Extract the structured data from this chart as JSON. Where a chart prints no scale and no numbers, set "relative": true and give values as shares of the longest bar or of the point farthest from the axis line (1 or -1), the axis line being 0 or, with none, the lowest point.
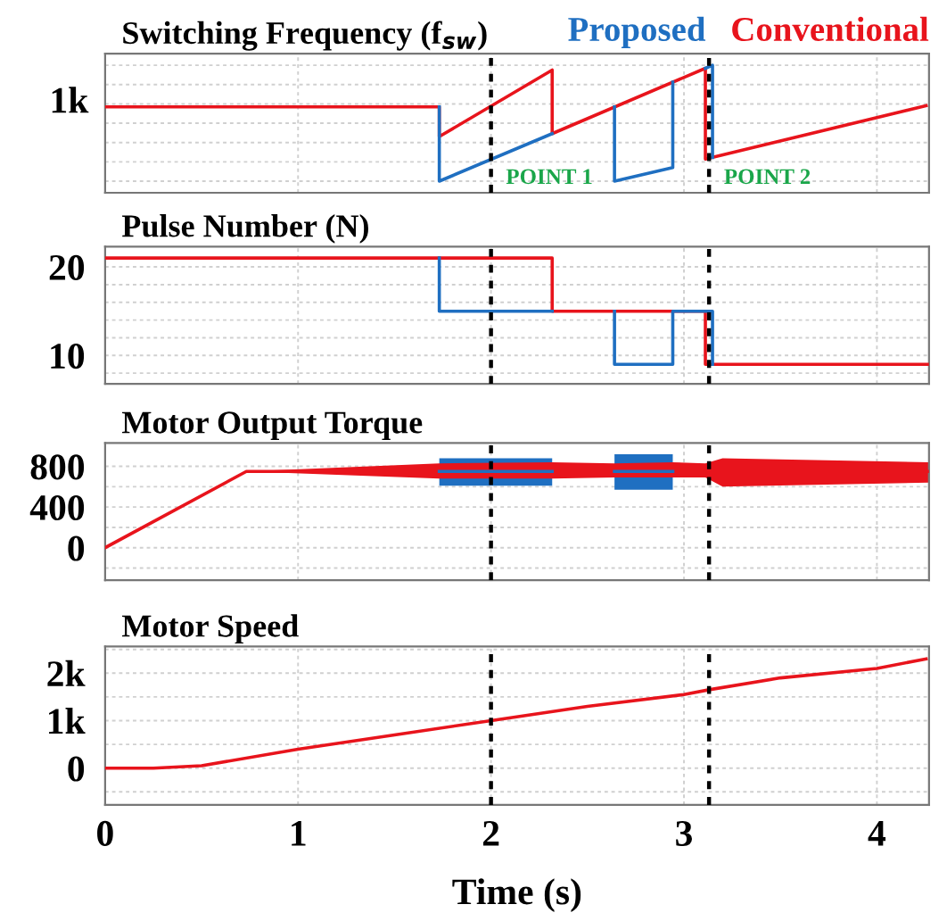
{
  "chart_data": [
    {
      "type": "line",
      "title": "Switching Frequency (f$_{sw}$)",
      "relative": true,
      "xlim": [
        0,
        4.27
      ],
      "tick_labels": false,
      "grid": true,
      "annotations": [
        "1k"
      ],
      "ref_lines": [
        {
          "axis": "x",
          "value": 2.0,
          "label": "POINT 1",
          "line_style": "dotted",
          "color": "#000000"
        },
        {
          "axis": "x",
          "value": 3.13,
          "label": "POINT 2",
          "line_style": "dotted",
          "color": "#000000"
        }
      ],
      "series": [
        {
          "name": "Proposed",
          "color": "#1f6fc1",
          "x": [
            1.732,
            1.732,
            2.317,
            2.5,
            2.64,
            2.64,
            2.942,
            2.942,
            3.0,
            3.111,
            3.148,
            3.148
          ],
          "values": [
            0.641,
            0,
            0.41,
            null,
            0.641,
            0,
            0.118,
            0.854,
            null,
            0.974,
            1.0,
            0.205
          ]
        },
        {
          "name": "Conventional",
          "color": "#e8141c",
          "x": [
            0,
            1.732,
            1.732,
            2.317,
            2.317,
            3.111,
            3.111,
            4.255
          ],
          "values": [
            0.641,
            0.641,
            0.385,
            0.959,
            0.41,
            0.974,
            0.19,
            0.651
          ]
        }
      ]
    },
    {
      "type": "line",
      "title": "Pulse Number (N)",
      "xlim": [
        0,
        4.27
      ],
      "ylim": [
        6.8,
        22.3
      ],
      "tick_labels": "y",
      "grid": true,
      "yticks": [
        {
          "value": 8,
          "label": null
        },
        10,
        {
          "value": 12,
          "label": null
        },
        {
          "value": 14,
          "label": null
        },
        {
          "value": 16,
          "label": null
        },
        {
          "value": 18,
          "label": null
        },
        20
      ],
      "ref_lines": [
        {
          "axis": "x",
          "value": 2.0,
          "line_style": "dotted",
          "color": "#000000"
        },
        {
          "axis": "x",
          "value": 3.13,
          "line_style": "dotted",
          "color": "#000000"
        }
      ],
      "series": [
        {
          "color": "#1f6fc1",
          "x": [
            1.732,
            1.732,
            2.317,
            2.5,
            2.64,
            2.64,
            2.942,
            2.942,
            3.148,
            3.148
          ],
          "values": [
            21,
            15,
            15,
            null,
            15,
            9,
            9,
            15,
            15,
            9
          ]
        },
        {
          "color": "#e8141c",
          "x": [
            0,
            2.317,
            2.317,
            3.111,
            3.111,
            4.27
          ],
          "values": [
            21,
            21,
            15,
            15,
            9,
            9
          ]
        }
      ]
    },
    {
      "type": "line",
      "title": "Motor Output Torque",
      "xlim": [
        0,
        4.27
      ],
      "ylim": [
        -320,
        1030
      ],
      "tick_labels": "y",
      "grid": true,
      "yticks": [
        {
          "value": -200,
          "label": null
        },
        0,
        {
          "value": 200,
          "label": null
        },
        400,
        {
          "value": 600,
          "label": null
        },
        800
      ],
      "ref_lines": [
        {
          "axis": "x",
          "value": 2.0,
          "line_style": "dotted",
          "color": "#000000"
        },
        {
          "axis": "x",
          "value": 3.13,
          "line_style": "dotted",
          "color": "#000000"
        }
      ],
      "series": [
        {
          "color": "#1f6fc1",
          "x": [
            1.732,
            2.317,
            2.5,
            2.64,
            2.942
          ],
          "values": [
            750,
            750,
            null,
            750,
            750
          ],
          "lower": [
            610,
            610,
            null,
            570,
            570
          ],
          "upper": [
            880,
            880,
            null,
            920,
            920
          ]
        },
        {
          "color": "#e8141c",
          "x": [
            0,
            0.732,
            1.732,
            2.317,
            2.64,
            2.942,
            3.111,
            3.2,
            4.27
          ],
          "values": [
            0,
            750,
            750,
            750,
            750,
            750,
            750,
            750,
            750
          ],
          "lower": [
            0,
            750,
            680,
            680,
            690,
            690,
            690,
            600,
            640
          ],
          "upper": [
            0,
            750,
            830,
            840,
            830,
            840,
            830,
            880,
            840
          ]
        }
      ]
    },
    {
      "type": "line",
      "title": "Motor Speed",
      "xlabel": "Time (s)",
      "xlim": [
        0,
        4.27
      ],
      "ylim": [
        -775,
        2560
      ],
      "grid": true,
      "xticks": [
        0,
        1,
        2,
        3,
        4
      ],
      "yticks": [
        {
          "value": -500,
          "label": null
        },
        0,
        {
          "value": 500,
          "label": null
        },
        {
          "value": 1000,
          "label": "1k"
        },
        {
          "value": 1500,
          "label": null
        },
        {
          "value": 2000,
          "label": "2k"
        },
        {
          "value": 2500,
          "label": null
        }
      ],
      "ref_lines": [
        {
          "axis": "x",
          "value": 2.0,
          "line_style": "dotted",
          "color": "#000000"
        },
        {
          "axis": "x",
          "value": 3.13,
          "line_style": "dotted",
          "color": "#000000"
        }
      ],
      "series": [
        {
          "color": "#e8141c",
          "x": [
            0,
            0.25,
            0.5,
            1,
            1.5,
            2,
            2.5,
            3,
            3.13,
            3.5,
            4,
            4.255
          ],
          "values": [
            0,
            0,
            50,
            400,
            700,
            1000,
            1300,
            1550,
            1650,
            1900,
            2100,
            2300
          ]
        }
      ]
    }
  ]
}
